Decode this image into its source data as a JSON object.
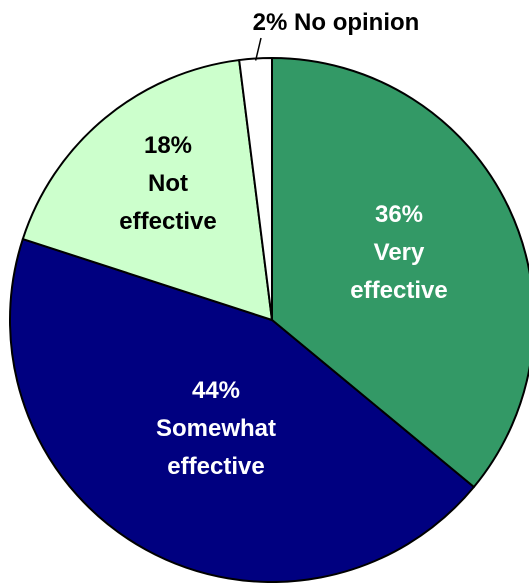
{
  "chart_data": {
    "type": "pie",
    "title": "",
    "slices": [
      {
        "pct_label": "36%",
        "name": [
          "Very",
          "effective"
        ],
        "value": 36,
        "color": "#339966",
        "text_color": "#ffffff"
      },
      {
        "pct_label": "44%",
        "name": [
          "Somewhat",
          "effective"
        ],
        "value": 44,
        "color": "#000080",
        "text_color": "#ffffff"
      },
      {
        "pct_label": "18%",
        "name": [
          "Not",
          "effective"
        ],
        "value": 18,
        "color": "#ccffcc",
        "text_color": "#000000"
      },
      {
        "pct_label": "2%",
        "name": [
          "No opinion"
        ],
        "value": 2,
        "color": "#ffffff",
        "text_color": "#000000"
      }
    ],
    "legend": "none"
  }
}
